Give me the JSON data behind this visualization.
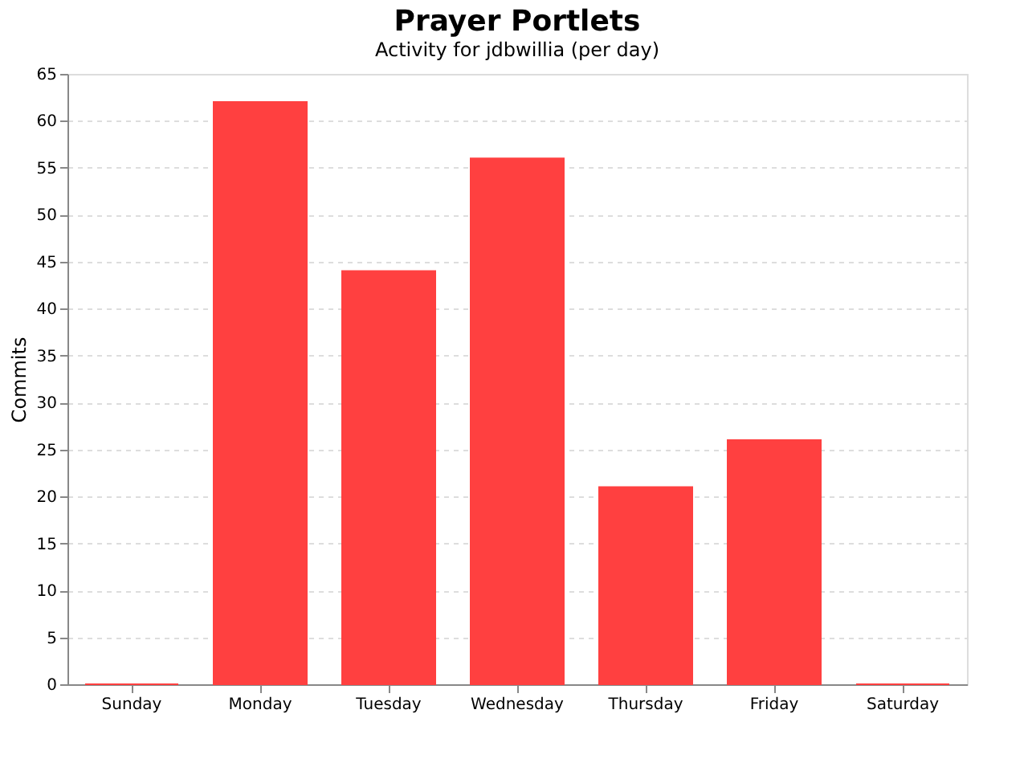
{
  "chart_data": {
    "type": "bar",
    "title": "Prayer Portlets",
    "subtitle": "Activity for jdbwillia (per day)",
    "ylabel": "Commits",
    "categories": [
      "Sunday",
      "Monday",
      "Tuesday",
      "Wednesday",
      "Thursday",
      "Friday",
      "Saturday"
    ],
    "values": [
      0,
      62,
      44,
      56,
      21,
      26,
      0
    ],
    "color": "#ff4040",
    "ylim": [
      0,
      65
    ],
    "yticks": [
      0,
      5,
      10,
      15,
      20,
      25,
      30,
      35,
      40,
      45,
      50,
      55,
      60,
      65
    ],
    "grid": "y"
  }
}
